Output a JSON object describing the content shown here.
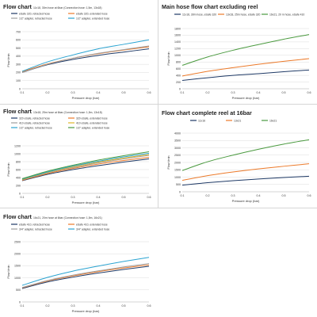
{
  "chart_data": [
    {
      "type": "line",
      "title": "Flow chart",
      "subtitle": "11x18, 30m hose at 6bar (Connection hose: 1,5m, 13x18)",
      "xlabel": "Pressure drop (bar)",
      "ylabel": "Flow l/min",
      "x": [
        0.1,
        0.2,
        0.3,
        0.4,
        0.5,
        0.6
      ],
      "xticks": [
        "0.1",
        "0.2",
        "0.3",
        "0.4",
        "0.5",
        "0.6"
      ],
      "xlim": [
        0.1,
        0.6
      ],
      "ylim": [
        0,
        700
      ],
      "yticks": [
        0,
        100,
        200,
        300,
        400,
        500,
        600,
        700
      ],
      "grid": true,
      "legend_position": "top-left",
      "series": [
        {
          "name": "eSafe 320, retracted hose",
          "color": "#1f3a66",
          "values": [
            200,
            295,
            360,
            410,
            450,
            490
          ]
        },
        {
          "name": "eSafe 320, extended hose",
          "color": "#ec7a2a",
          "values": [
            210,
            305,
            375,
            430,
            475,
            515
          ]
        },
        {
          "name": "1/2\" adapter, retracted hose",
          "color": "#9e9e9e",
          "values": [
            200,
            300,
            375,
            435,
            480,
            525
          ]
        },
        {
          "name": "1/2\" adapter, extended hose",
          "color": "#29a3d1",
          "values": [
            215,
            330,
            415,
            490,
            545,
            600
          ]
        }
      ]
    },
    {
      "type": "line",
      "title": "Main hose flow chart excluding reel",
      "subtitle": "",
      "xlabel": "Pressure drop (bar)",
      "ylabel": "Flow l/min",
      "x": [
        0.1,
        0.2,
        0.3,
        0.4,
        0.5,
        0.6
      ],
      "xticks": [
        "0.1",
        "0.2",
        "0.3",
        "0.4",
        "0.5",
        "0.6"
      ],
      "xlim": [
        0.1,
        0.6
      ],
      "ylim": [
        0,
        1800
      ],
      "yticks": [
        0,
        200,
        400,
        600,
        800,
        1000,
        1200,
        1400,
        1600,
        1800
      ],
      "grid": true,
      "legend_position": "top",
      "series": [
        {
          "name": "11x18, 30m hose, eSafe 320",
          "color": "#1f3a66",
          "values": [
            250,
            330,
            400,
            450,
            510,
            560
          ]
        },
        {
          "name": "13x18, 25m hose, eSafe 320",
          "color": "#ec7a2a",
          "values": [
            380,
            520,
            630,
            730,
            820,
            900
          ]
        },
        {
          "name": "16x21, 20 m hose, eSafe 410",
          "color": "#4a9a3f",
          "values": [
            700,
            950,
            1150,
            1320,
            1480,
            1620
          ]
        }
      ]
    },
    {
      "type": "line",
      "title": "Flow chart",
      "subtitle": "13x18, 25m hose at 6bar (Connection hose: 1,5m, 13x18)",
      "xlabel": "Pressure drop (bar)",
      "ylabel": "Flow l/min",
      "x": [
        0.1,
        0.2,
        0.3,
        0.4,
        0.5,
        0.6
      ],
      "xticks": [
        "0.1",
        "0.2",
        "0.3",
        "0.4",
        "0.5",
        "0.6"
      ],
      "xlim": [
        0.1,
        0.6
      ],
      "ylim": [
        0,
        1200
      ],
      "yticks": [
        0,
        200,
        400,
        600,
        800,
        1000,
        1200
      ],
      "grid": true,
      "legend_position": "top-left",
      "series": [
        {
          "name": "320 eSafe, retracted hose",
          "color": "#1f3a66",
          "values": [
            320,
            480,
            600,
            700,
            790,
            870
          ]
        },
        {
          "name": "320 eSafe, extended hose",
          "color": "#ec7a2a",
          "values": [
            330,
            500,
            630,
            740,
            830,
            910
          ]
        },
        {
          "name": "410 eSafe, retracted hose",
          "color": "#9e9e9e",
          "values": [
            340,
            520,
            650,
            770,
            870,
            960
          ]
        },
        {
          "name": "410 eSafe, extended hose",
          "color": "#e0b72a",
          "values": [
            350,
            530,
            670,
            790,
            890,
            980
          ]
        },
        {
          "name": "1/2\" adapter, retracted hose",
          "color": "#29a3d1",
          "values": [
            360,
            540,
            690,
            810,
            920,
            1010
          ]
        },
        {
          "name": "1/2\" adapter, extended hose",
          "color": "#4a9a3f",
          "values": [
            370,
            560,
            710,
            840,
            950,
            1050
          ]
        }
      ]
    },
    {
      "type": "line",
      "title": "Flow chart complete reel at 16bar",
      "subtitle": "",
      "xlabel": "Pressure drop (bar)",
      "ylabel": "Flow l/min",
      "x": [
        0.1,
        0.2,
        0.3,
        0.4,
        0.5,
        0.6
      ],
      "xticks": [
        "0.1",
        "0.2",
        "0.3",
        "0.4",
        "0.5",
        "0.6"
      ],
      "xlim": [
        0.1,
        0.6
      ],
      "ylim": [
        0,
        4000
      ],
      "yticks": [
        0,
        500,
        1000,
        1500,
        2000,
        2500,
        3000,
        3500,
        4000
      ],
      "grid": true,
      "legend_position": "top",
      "series": [
        {
          "name": "11x16",
          "color": "#1f3a66",
          "values": [
            450,
            620,
            760,
            870,
            970,
            1060
          ]
        },
        {
          "name": "13x21",
          "color": "#ec7a2a",
          "values": [
            780,
            1100,
            1350,
            1560,
            1740,
            1910
          ]
        },
        {
          "name": "16x21",
          "color": "#4a9a3f",
          "values": [
            1450,
            2050,
            2500,
            2900,
            3250,
            3550
          ]
        }
      ]
    },
    {
      "type": "line",
      "title": "Flow chart",
      "subtitle": "16x21, 20m hose at 6bar (Connection hose: 1,5m, 16x21)",
      "xlabel": "Pressure drop (bar)",
      "ylabel": "Flow l/min",
      "x": [
        0.1,
        0.2,
        0.3,
        0.4,
        0.5,
        0.6
      ],
      "xticks": [
        "0.1",
        "0.2",
        "0.3",
        "0.4",
        "0.5",
        "0.6"
      ],
      "xlim": [
        0.1,
        0.6
      ],
      "ylim": [
        0,
        2500
      ],
      "yticks": [
        0,
        500,
        1000,
        1500,
        2000,
        2500
      ],
      "grid": true,
      "legend_position": "top-left",
      "series": [
        {
          "name": "eSafe 410, retracted hose",
          "color": "#1f3a66",
          "values": [
            560,
            830,
            1030,
            1200,
            1350,
            1480
          ]
        },
        {
          "name": "eSafe 410, extended hose",
          "color": "#ec7a2a",
          "values": [
            590,
            870,
            1080,
            1260,
            1410,
            1540
          ]
        },
        {
          "name": "3/4\" adapter, retracted hose",
          "color": "#9e9e9e",
          "values": [
            600,
            890,
            1110,
            1290,
            1450,
            1590
          ]
        },
        {
          "name": "3/4\" adapter, extended hose",
          "color": "#29a3d1",
          "values": [
            690,
            1020,
            1280,
            1490,
            1680,
            1850
          ]
        }
      ]
    }
  ]
}
